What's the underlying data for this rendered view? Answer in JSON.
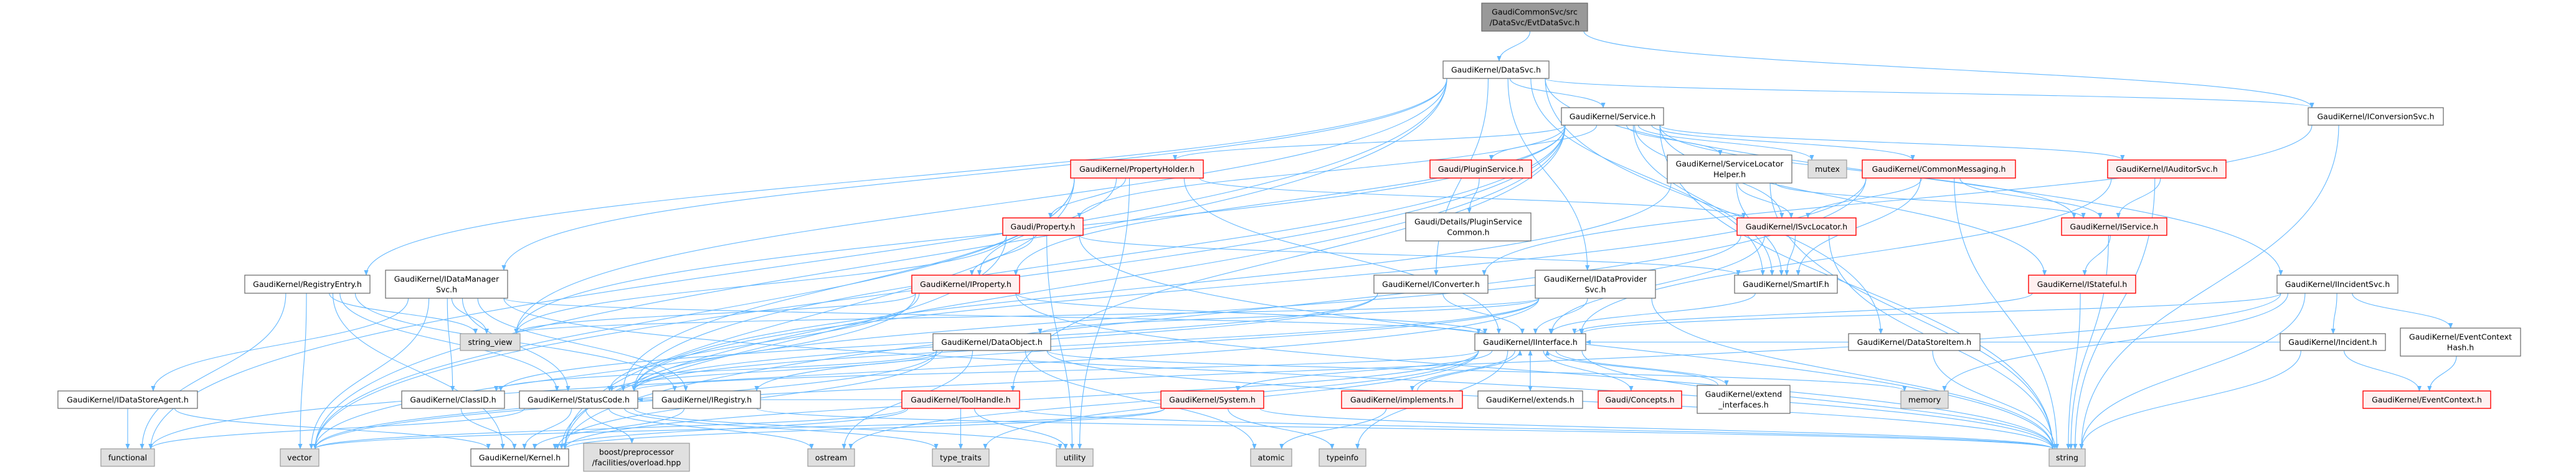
{
  "graph": {
    "colors": {
      "edge": "#63B8FF",
      "root_fill": "#999999",
      "root_stroke": "#666666",
      "normal_fill": "#FFFFFF",
      "normal_stroke": "#666666",
      "truncated_fill": "#FFF0F0",
      "truncated_stroke": "#FF0000",
      "external_fill": "#E0E0E0",
      "external_stroke": "#999999"
    },
    "nodes": [
      {
        "id": "root",
        "lines": [
          "GaudiCommonSvc/src",
          "/DataSvc/EvtDataSvc.h"
        ],
        "kind": "root"
      },
      {
        "id": "DataSvc",
        "lines": [
          "GaudiKernel/DataSvc.h"
        ],
        "kind": "normal"
      },
      {
        "id": "Service",
        "lines": [
          "GaudiKernel/Service.h"
        ],
        "kind": "normal"
      },
      {
        "id": "IConversionSvc",
        "lines": [
          "GaudiKernel/IConversionSvc.h"
        ],
        "kind": "normal"
      },
      {
        "id": "PropertyHolder",
        "lines": [
          "GaudiKernel/PropertyHolder.h"
        ],
        "kind": "truncated"
      },
      {
        "id": "PluginService",
        "lines": [
          "Gaudi/PluginService.h"
        ],
        "kind": "truncated"
      },
      {
        "id": "ServiceLocatorHelper",
        "lines": [
          "GaudiKernel/ServiceLocator",
          "Helper.h"
        ],
        "kind": "normal"
      },
      {
        "id": "mutex",
        "lines": [
          "mutex"
        ],
        "kind": "external"
      },
      {
        "id": "CommonMessaging",
        "lines": [
          "GaudiKernel/CommonMessaging.h"
        ],
        "kind": "truncated"
      },
      {
        "id": "IAuditorSvc",
        "lines": [
          "GaudiKernel/IAuditorSvc.h"
        ],
        "kind": "truncated"
      },
      {
        "id": "Property",
        "lines": [
          "Gaudi/Property.h"
        ],
        "kind": "truncated"
      },
      {
        "id": "PluginServiceCommon",
        "lines": [
          "Gaudi/Details/PluginService",
          "Common.h"
        ],
        "kind": "normal"
      },
      {
        "id": "ISvcLocator",
        "lines": [
          "GaudiKernel/ISvcLocator.h"
        ],
        "kind": "truncated"
      },
      {
        "id": "IService",
        "lines": [
          "GaudiKernel/IService.h"
        ],
        "kind": "truncated"
      },
      {
        "id": "RegistryEntry",
        "lines": [
          "GaudiKernel/RegistryEntry.h"
        ],
        "kind": "normal"
      },
      {
        "id": "IDataManagerSvc",
        "lines": [
          "GaudiKernel/IDataManager",
          "Svc.h"
        ],
        "kind": "normal"
      },
      {
        "id": "IProperty",
        "lines": [
          "GaudiKernel/IProperty.h"
        ],
        "kind": "truncated"
      },
      {
        "id": "IConverter",
        "lines": [
          "GaudiKernel/IConverter.h"
        ],
        "kind": "normal"
      },
      {
        "id": "IDataProviderSvc",
        "lines": [
          "GaudiKernel/IDataProvider",
          "Svc.h"
        ],
        "kind": "normal"
      },
      {
        "id": "SmartIF",
        "lines": [
          "GaudiKernel/SmartIF.h"
        ],
        "kind": "normal"
      },
      {
        "id": "IStateful",
        "lines": [
          "GaudiKernel/IStateful.h"
        ],
        "kind": "truncated"
      },
      {
        "id": "IIncidentSvc",
        "lines": [
          "GaudiKernel/IIncidentSvc.h"
        ],
        "kind": "normal"
      },
      {
        "id": "string_view",
        "lines": [
          "string_view"
        ],
        "kind": "external"
      },
      {
        "id": "DataObject",
        "lines": [
          "GaudiKernel/DataObject.h"
        ],
        "kind": "normal"
      },
      {
        "id": "IInterface",
        "lines": [
          "GaudiKernel/IInterface.h"
        ],
        "kind": "normal"
      },
      {
        "id": "DataStoreItem",
        "lines": [
          "GaudiKernel/DataStoreItem.h"
        ],
        "kind": "normal"
      },
      {
        "id": "Incident",
        "lines": [
          "GaudiKernel/Incident.h"
        ],
        "kind": "normal"
      },
      {
        "id": "EventContextHash",
        "lines": [
          "GaudiKernel/EventContext",
          "Hash.h"
        ],
        "kind": "normal"
      },
      {
        "id": "IDataStoreAgent",
        "lines": [
          "GaudiKernel/IDataStoreAgent.h"
        ],
        "kind": "normal"
      },
      {
        "id": "ClassID",
        "lines": [
          "GaudiKernel/ClassID.h"
        ],
        "kind": "normal"
      },
      {
        "id": "StatusCode",
        "lines": [
          "GaudiKernel/StatusCode.h"
        ],
        "kind": "normal"
      },
      {
        "id": "IRegistry",
        "lines": [
          "GaudiKernel/IRegistry.h"
        ],
        "kind": "normal"
      },
      {
        "id": "ToolHandle",
        "lines": [
          "GaudiKernel/ToolHandle.h"
        ],
        "kind": "truncated"
      },
      {
        "id": "System",
        "lines": [
          "GaudiKernel/System.h"
        ],
        "kind": "truncated"
      },
      {
        "id": "implements",
        "lines": [
          "GaudiKernel/implements.h"
        ],
        "kind": "truncated"
      },
      {
        "id": "extends",
        "lines": [
          "GaudiKernel/extends.h"
        ],
        "kind": "normal"
      },
      {
        "id": "Concepts",
        "lines": [
          "Gaudi/Concepts.h"
        ],
        "kind": "truncated"
      },
      {
        "id": "extend_interfaces",
        "lines": [
          "GaudiKernel/extend",
          "_interfaces.h"
        ],
        "kind": "normal"
      },
      {
        "id": "memory",
        "lines": [
          "memory"
        ],
        "kind": "external"
      },
      {
        "id": "EventContext",
        "lines": [
          "GaudiKernel/EventContext.h"
        ],
        "kind": "truncated"
      },
      {
        "id": "functional",
        "lines": [
          "functional"
        ],
        "kind": "external"
      },
      {
        "id": "vector",
        "lines": [
          "vector"
        ],
        "kind": "external"
      },
      {
        "id": "Kernel",
        "lines": [
          "GaudiKernel/Kernel.h"
        ],
        "kind": "normal"
      },
      {
        "id": "boost",
        "lines": [
          "boost/preprocessor",
          "/facilities/overload.hpp"
        ],
        "kind": "external"
      },
      {
        "id": "ostream",
        "lines": [
          "ostream"
        ],
        "kind": "external"
      },
      {
        "id": "type_traits",
        "lines": [
          "type_traits"
        ],
        "kind": "external"
      },
      {
        "id": "utility",
        "lines": [
          "utility"
        ],
        "kind": "external"
      },
      {
        "id": "atomic",
        "lines": [
          "atomic"
        ],
        "kind": "external"
      },
      {
        "id": "typeinfo",
        "lines": [
          "typeinfo"
        ],
        "kind": "external"
      },
      {
        "id": "string",
        "lines": [
          "string"
        ],
        "kind": "external"
      }
    ],
    "edges": [
      [
        "root",
        "DataSvc"
      ],
      [
        "root",
        "IConversionSvc"
      ],
      [
        "DataSvc",
        "Service"
      ],
      [
        "DataSvc",
        "IConversionSvc"
      ],
      [
        "DataSvc",
        "IDataManagerSvc"
      ],
      [
        "DataSvc",
        "IDataProviderSvc"
      ],
      [
        "DataSvc",
        "RegistryEntry"
      ],
      [
        "DataSvc",
        "DataStoreItem"
      ],
      [
        "DataSvc",
        "IIncidentSvc"
      ],
      [
        "DataSvc",
        "string_view"
      ],
      [
        "DataSvc",
        "vector"
      ],
      [
        "DataSvc",
        "functional"
      ],
      [
        "DataSvc",
        "IConverter"
      ],
      [
        "DataSvc",
        "SmartIF"
      ],
      [
        "Service",
        "PropertyHolder"
      ],
      [
        "Service",
        "Property"
      ],
      [
        "Service",
        "IProperty"
      ],
      [
        "Service",
        "PluginService"
      ],
      [
        "Service",
        "ServiceLocatorHelper"
      ],
      [
        "Service",
        "mutex"
      ],
      [
        "Service",
        "CommonMessaging"
      ],
      [
        "Service",
        "IAuditorSvc"
      ],
      [
        "Service",
        "IService"
      ],
      [
        "Service",
        "IStateful"
      ],
      [
        "Service",
        "ISvcLocator"
      ],
      [
        "Service",
        "SmartIF"
      ],
      [
        "Service",
        "ToolHandle"
      ],
      [
        "Service",
        "Kernel"
      ],
      [
        "Service",
        "string"
      ],
      [
        "Service",
        "vector"
      ],
      [
        "Service",
        "string_view"
      ],
      [
        "Service",
        "StatusCode"
      ],
      [
        "IConversionSvc",
        "IConverter"
      ],
      [
        "IConversionSvc",
        "string"
      ],
      [
        "PropertyHolder",
        "Property"
      ],
      [
        "PropertyHolder",
        "IProperty"
      ],
      [
        "PropertyHolder",
        "IInterface"
      ],
      [
        "PropertyHolder",
        "ISvcLocator"
      ],
      [
        "PropertyHolder",
        "Kernel"
      ],
      [
        "PropertyHolder",
        "vector"
      ],
      [
        "PropertyHolder",
        "utility"
      ],
      [
        "PropertyHolder",
        "StatusCode"
      ],
      [
        "PluginService",
        "PluginServiceCommon"
      ],
      [
        "ServiceLocatorHelper",
        "ISvcLocator"
      ],
      [
        "ServiceLocatorHelper",
        "IService"
      ],
      [
        "ServiceLocatorHelper",
        "SmartIF"
      ],
      [
        "ServiceLocatorHelper",
        "string"
      ],
      [
        "ServiceLocatorHelper",
        "StatusCode"
      ],
      [
        "CommonMessaging",
        "ISvcLocator"
      ],
      [
        "CommonMessaging",
        "IService"
      ],
      [
        "CommonMessaging",
        "SmartIF"
      ],
      [
        "CommonMessaging",
        "string"
      ],
      [
        "CommonMessaging",
        "StatusCode"
      ],
      [
        "CommonMessaging",
        "Kernel"
      ],
      [
        "IAuditorSvc",
        "IService"
      ],
      [
        "IAuditorSvc",
        "IInterface"
      ],
      [
        "IAuditorSvc",
        "string"
      ],
      [
        "Property",
        "IProperty"
      ],
      [
        "Property",
        "SmartIF"
      ],
      [
        "Property",
        "Kernel"
      ],
      [
        "Property",
        "string"
      ],
      [
        "Property",
        "string_view"
      ],
      [
        "Property",
        "utility"
      ],
      [
        "ISvcLocator",
        "SmartIF"
      ],
      [
        "ISvcLocator",
        "IInterface"
      ],
      [
        "ISvcLocator",
        "string"
      ],
      [
        "ISvcLocator",
        "StatusCode"
      ],
      [
        "IService",
        "IStateful"
      ],
      [
        "IService",
        "string"
      ],
      [
        "RegistryEntry",
        "IRegistry"
      ],
      [
        "RegistryEntry",
        "StatusCode"
      ],
      [
        "RegistryEntry",
        "Kernel"
      ],
      [
        "RegistryEntry",
        "string_view"
      ],
      [
        "RegistryEntry",
        "vector"
      ],
      [
        "RegistryEntry",
        "functional"
      ],
      [
        "IDataManagerSvc",
        "IInterface"
      ],
      [
        "IDataManagerSvc",
        "ClassID"
      ],
      [
        "IDataManagerSvc",
        "IDataStoreAgent"
      ],
      [
        "IDataManagerSvc",
        "StatusCode"
      ],
      [
        "IDataManagerSvc",
        "string"
      ],
      [
        "IDataManagerSvc",
        "string_view"
      ],
      [
        "IDataManagerSvc",
        "vector"
      ],
      [
        "IDataManagerSvc",
        "IRegistry"
      ],
      [
        "IProperty",
        "IInterface"
      ],
      [
        "IProperty",
        "StatusCode"
      ],
      [
        "IProperty",
        "string"
      ],
      [
        "IProperty",
        "string_view"
      ],
      [
        "IProperty",
        "vector"
      ],
      [
        "IConverter",
        "IInterface"
      ],
      [
        "IConverter",
        "ClassID"
      ],
      [
        "IConverter",
        "StatusCode"
      ],
      [
        "IDataProviderSvc",
        "IInterface"
      ],
      [
        "IDataProviderSvc",
        "DataObject"
      ],
      [
        "IDataProviderSvc",
        "IRegistry"
      ],
      [
        "IDataProviderSvc",
        "StatusCode"
      ],
      [
        "IDataProviderSvc",
        "string"
      ],
      [
        "IDataProviderSvc",
        "string_view"
      ],
      [
        "IDataProviderSvc",
        "functional"
      ],
      [
        "SmartIF",
        "IInterface"
      ],
      [
        "IStateful",
        "IInterface"
      ],
      [
        "IStateful",
        "string"
      ],
      [
        "IIncidentSvc",
        "IInterface"
      ],
      [
        "IIncidentSvc",
        "Incident"
      ],
      [
        "IIncidentSvc",
        "EventContextHash"
      ],
      [
        "IIncidentSvc",
        "memory"
      ],
      [
        "IIncidentSvc",
        "string"
      ],
      [
        "IIncidentSvc",
        "vector"
      ],
      [
        "DataObject",
        "ClassID"
      ],
      [
        "DataObject",
        "StatusCode"
      ],
      [
        "DataObject",
        "Kernel"
      ],
      [
        "DataObject",
        "string"
      ],
      [
        "DataObject",
        "memory"
      ],
      [
        "DataObject",
        "vector"
      ],
      [
        "DataObject",
        "ostream"
      ],
      [
        "DataObject",
        "atomic"
      ],
      [
        "DataStoreItem",
        "string"
      ],
      [
        "Incident",
        "EventContext"
      ],
      [
        "Incident",
        "string"
      ],
      [
        "Incident",
        "IInterface"
      ],
      [
        "EventContextHash",
        "EventContext"
      ],
      [
        "IInterface",
        "System"
      ],
      [
        "IInterface",
        "Kernel"
      ],
      [
        "IInterface",
        "StatusCode"
      ],
      [
        "IInterface",
        "ostream"
      ],
      [
        "IInterface",
        "type_traits"
      ],
      [
        "IInterface",
        "typeinfo"
      ],
      [
        "IInterface",
        "string"
      ],
      [
        "IInterface",
        "Concepts"
      ],
      [
        "IInterface",
        "extend_interfaces"
      ],
      [
        "IInterface",
        "implements"
      ],
      [
        "IInterface",
        "extends"
      ],
      [
        "implements",
        "IInterface"
      ],
      [
        "implements",
        "atomic"
      ],
      [
        "extends",
        "IInterface"
      ],
      [
        "extend_interfaces",
        "IInterface"
      ],
      [
        "System",
        "Kernel"
      ],
      [
        "System",
        "string"
      ],
      [
        "System",
        "typeinfo"
      ],
      [
        "System",
        "vector"
      ],
      [
        "ToolHandle",
        "Kernel"
      ],
      [
        "ToolHandle",
        "type_traits"
      ],
      [
        "ToolHandle",
        "utility"
      ],
      [
        "ToolHandle",
        "string"
      ],
      [
        "ToolHandle",
        "vector"
      ],
      [
        "ToolHandle",
        "StatusCode"
      ],
      [
        "StatusCode",
        "boost"
      ],
      [
        "StatusCode",
        "Kernel"
      ],
      [
        "StatusCode",
        "functional"
      ],
      [
        "StatusCode",
        "ostream"
      ],
      [
        "StatusCode",
        "type_traits"
      ],
      [
        "StatusCode",
        "utility"
      ],
      [
        "ClassID",
        "Kernel"
      ],
      [
        "IRegistry",
        "Kernel"
      ],
      [
        "IRegistry",
        "string"
      ],
      [
        "IDataStoreAgent",
        "functional"
      ],
      [
        "IDataStoreAgent",
        "Kernel"
      ]
    ]
  }
}
